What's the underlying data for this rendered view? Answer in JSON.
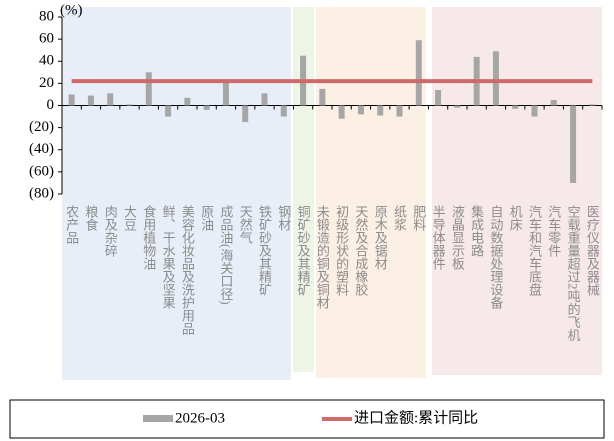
{
  "chart_data": {
    "type": "bar",
    "unit_label": "(%)",
    "categories": [
      "农产品",
      "粮食",
      "肉及杂碎",
      "大豆",
      "食用植物油",
      "鲜、干水果及坚果",
      "美容化妆品及洗护用品",
      "原油",
      "成品油(海关口径)",
      "天然气",
      "铁矿砂及其精矿",
      "钢材",
      "铜矿砂及其精矿",
      "未锻造的铜及铜材",
      "初级形状的塑料",
      "天然及合成橡胶",
      "原木及锯材",
      "纸浆",
      "肥料",
      "半导体器件",
      "液晶显示板",
      "集成电路",
      "自动数据处理设备",
      "机床",
      "汽车和汽车底盘",
      "汽车零件",
      "空载重量超过2吨的飞机",
      "医疗仪器及器械"
    ],
    "series": [
      {
        "name": "2026-03",
        "type": "bar",
        "color": "#a6a6a6",
        "values": [
          10,
          9,
          11,
          1,
          30,
          -10,
          7,
          -4,
          21,
          -15,
          11,
          -10,
          45,
          15,
          -12,
          -8,
          -9,
          -10,
          59,
          14,
          -2,
          44,
          49,
          -3,
          -10,
          5,
          -70,
          1
        ]
      },
      {
        "name": "进口金额:累计同比",
        "type": "line",
        "color": "#d06a6a",
        "values": [
          22,
          22,
          22,
          22,
          22,
          22,
          22,
          22,
          22,
          22,
          22,
          22,
          22,
          22,
          22,
          22,
          22,
          22,
          22,
          22,
          22,
          22,
          22,
          22,
          22,
          22,
          22,
          22
        ]
      }
    ],
    "ylim": [
      -80,
      80
    ],
    "yticks": [
      80,
      60,
      40,
      20,
      0,
      {
        "value": -20,
        "label": "(20)"
      },
      {
        "value": -40,
        "label": "(40)"
      },
      {
        "value": -60,
        "label": "(60)"
      },
      {
        "value": -80,
        "label": "(80)"
      }
    ],
    "negative_tick_color": "#ff0000"
  }
}
